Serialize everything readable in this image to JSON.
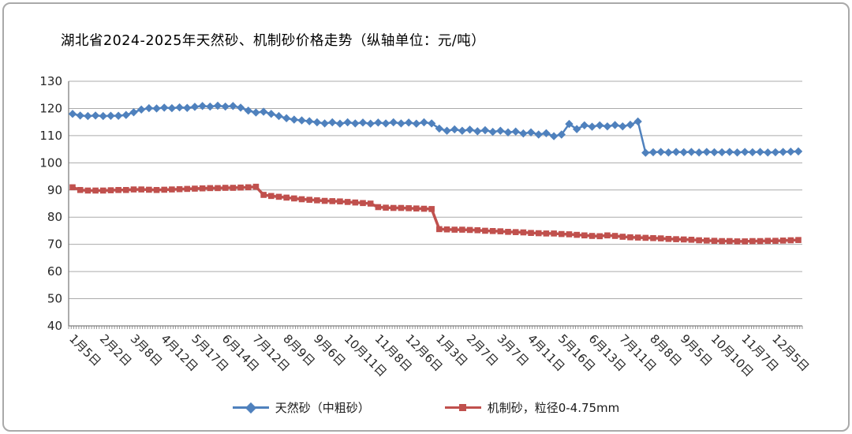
{
  "frame": {
    "border_color": "#a9a9a9"
  },
  "chart_data": {
    "type": "line",
    "title": "湖北省2024-2025年天然砂、机制砂价格走势（纵轴单位：元/吨）",
    "xlabel": "",
    "ylabel": "",
    "ylim": [
      40,
      130
    ],
    "ytick_step": 10,
    "grid": true,
    "legend_position": "bottom",
    "axis_color": "#7f7f7f",
    "grid_color": "#ababab",
    "tick_label_color": "#262626",
    "x_label_every": 4,
    "x_labels": [
      "1月5日",
      "2月2日",
      "3月8日",
      "4月12日",
      "5月17日",
      "6月14日",
      "7月12日",
      "8月9日",
      "9月6日",
      "10月11日",
      "11月8日",
      "12月6日",
      "1月3日",
      "2月7日",
      "3月7日",
      "4月11日",
      "5月16日",
      "6月13日",
      "7月11日",
      "8月8日",
      "9月5日",
      "10月10日",
      "11月7日",
      "12月5日"
    ],
    "series": [
      {
        "name": "天然砂（中粗砂）",
        "color": "#4f81bd",
        "marker": "diamond",
        "values": [
          118.0,
          117.4,
          117.2,
          117.4,
          117.2,
          117.3,
          117.3,
          117.6,
          118.6,
          119.6,
          120.1,
          120.0,
          120.3,
          120.1,
          120.4,
          120.2,
          120.6,
          120.9,
          120.7,
          121.0,
          120.7,
          120.9,
          120.3,
          119.2,
          118.5,
          118.8,
          118.0,
          117.2,
          116.4,
          115.9,
          115.6,
          115.3,
          114.9,
          114.5,
          114.9,
          114.4,
          114.9,
          114.5,
          114.8,
          114.4,
          114.8,
          114.5,
          114.9,
          114.5,
          114.8,
          114.4,
          114.9,
          114.5,
          112.6,
          111.8,
          112.3,
          111.8,
          112.2,
          111.6,
          112.0,
          111.4,
          111.8,
          111.2,
          111.5,
          110.8,
          111.2,
          110.4,
          110.9,
          109.8,
          110.4,
          114.3,
          112.4,
          113.8,
          113.3,
          113.8,
          113.4,
          113.9,
          113.4,
          114.0,
          115.2,
          103.7,
          103.9,
          104.0,
          103.8,
          104.0,
          103.9,
          104.0,
          103.8,
          104.0,
          103.9,
          103.9,
          104.0,
          103.8,
          104.0,
          103.9,
          104.0,
          103.8,
          103.9,
          104.0,
          104.1,
          104.2
        ]
      },
      {
        "name": "机制砂，粒径0-4.75mm",
        "color": "#c0504d",
        "marker": "square",
        "values": [
          91.0,
          90.0,
          89.8,
          89.8,
          89.8,
          89.9,
          90.0,
          90.0,
          90.2,
          90.2,
          90.1,
          90.0,
          90.1,
          90.2,
          90.3,
          90.4,
          90.5,
          90.6,
          90.7,
          90.7,
          90.8,
          90.8,
          90.9,
          91.0,
          91.2,
          88.2,
          87.8,
          87.5,
          87.2,
          86.9,
          86.6,
          86.4,
          86.2,
          86.0,
          85.9,
          85.8,
          85.6,
          85.4,
          85.2,
          85.0,
          83.7,
          83.5,
          83.4,
          83.4,
          83.3,
          83.2,
          83.1,
          83.0,
          75.6,
          75.5,
          75.4,
          75.4,
          75.3,
          75.2,
          75.0,
          74.9,
          74.8,
          74.6,
          74.5,
          74.4,
          74.2,
          74.1,
          74.0,
          74.0,
          73.8,
          73.7,
          73.5,
          73.3,
          73.1,
          73.0,
          73.3,
          73.1,
          72.8,
          72.6,
          72.5,
          72.4,
          72.3,
          72.2,
          72.0,
          71.9,
          71.8,
          71.7,
          71.5,
          71.4,
          71.3,
          71.2,
          71.2,
          71.1,
          71.1,
          71.2,
          71.2,
          71.3,
          71.3,
          71.4,
          71.5,
          71.6
        ]
      }
    ]
  }
}
